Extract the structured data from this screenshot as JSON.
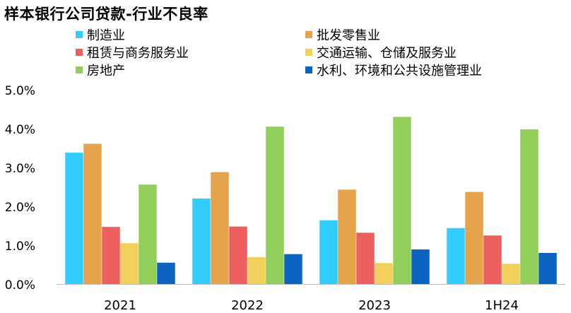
{
  "title": "样本银行公司贷款-行业不良率",
  "chart_data": {
    "type": "bar",
    "title": "样本银行公司贷款-行业不良率",
    "categories": [
      "2021",
      "2022",
      "2023",
      "1H24"
    ],
    "ylim": [
      0,
      5.0
    ],
    "yticks": [
      0,
      1,
      2,
      3,
      4,
      5
    ],
    "ytick_labels": [
      "0.0%",
      "1.0%",
      "2.0%",
      "3.0%",
      "4.0%",
      "5.0%"
    ],
    "grid": false,
    "legend_position": "top",
    "series": [
      {
        "name": "制造业",
        "color": "#33CCFF",
        "values": [
          3.38,
          2.2,
          1.64,
          1.44
        ]
      },
      {
        "name": "批发零售业",
        "color": "#E6A34E",
        "values": [
          3.61,
          2.88,
          2.43,
          2.37
        ]
      },
      {
        "name": "租赁与商务服务业",
        "color": "#EB5F5F",
        "values": [
          1.47,
          1.48,
          1.32,
          1.25
        ]
      },
      {
        "name": "交通运输、仓储及服务业",
        "color": "#F0CF5A",
        "values": [
          1.05,
          0.69,
          0.54,
          0.52
        ]
      },
      {
        "name": "房地产",
        "color": "#92CE5A",
        "values": [
          2.56,
          4.05,
          4.3,
          3.98
        ]
      },
      {
        "name": "水利、环境和公共设施管理业",
        "color": "#0C63C0",
        "values": [
          0.55,
          0.77,
          0.89,
          0.8
        ]
      }
    ]
  }
}
